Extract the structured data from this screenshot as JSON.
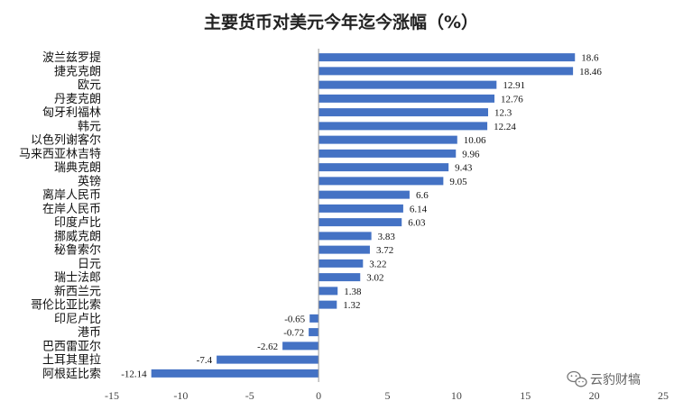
{
  "chart_data": {
    "type": "bar",
    "orientation": "horizontal",
    "title": "主要货币对美元今年迄今涨幅（%）",
    "categories": [
      "波兰兹罗提",
      "捷克克朗",
      "欧元",
      "丹麦克朗",
      "匈牙利福林",
      "韩元",
      "以色列谢客尔",
      "马来西亚林吉特",
      "瑞典克朗",
      "英镑",
      "离岸人民币",
      "在岸人民币",
      "印度卢比",
      "挪威克朗",
      "秘鲁索尔",
      "日元",
      "瑞士法郎",
      "新西兰元",
      "哥伦比亚比索",
      "印尼卢比",
      "港币",
      "巴西雷亚尔",
      "土耳其里拉",
      "阿根廷比索"
    ],
    "values": [
      18.6,
      18.46,
      12.91,
      12.76,
      12.3,
      12.24,
      10.06,
      9.96,
      9.43,
      9.05,
      6.6,
      6.14,
      6.03,
      3.83,
      3.72,
      3.22,
      3.02,
      1.38,
      1.32,
      -0.65,
      -0.72,
      -2.62,
      -7.4,
      -12.14
    ],
    "value_labels": [
      "18.6",
      "18.46",
      "12.91",
      "12.76",
      "12.3",
      "12.24",
      "10.06",
      "9.96",
      "9.43",
      "9.05",
      "6.6",
      "6.14",
      "6.03",
      "3.83",
      "3.72",
      "3.22",
      "3.02",
      "1.38",
      "1.32",
      "-0.65",
      "-0.72",
      "-2.62",
      "-7.4",
      "-12.14"
    ],
    "xlim": [
      -15,
      25
    ],
    "xticks": [
      "-15",
      "-10",
      "-5",
      "0",
      "5",
      "10",
      "15",
      "20",
      "25"
    ],
    "grid": false,
    "legend": "none",
    "bar_color": "#4472c4",
    "xlabel": "",
    "ylabel": ""
  },
  "watermark": {
    "text": "云豹财犒",
    "icon": "wechat-icon"
  }
}
